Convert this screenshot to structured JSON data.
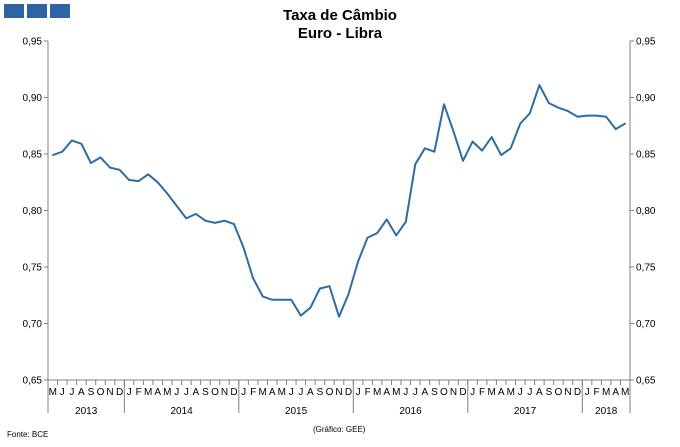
{
  "header": {
    "logo_name": "blue-blocks-logo"
  },
  "chart_data": {
    "type": "line",
    "title": "Taxa de Câmbio",
    "subtitle": "Euro - Libra",
    "ylim": [
      0.65,
      0.95
    ],
    "yticks": [
      "0,65",
      "0,70",
      "0,75",
      "0,80",
      "0,85",
      "0,90",
      "0,95"
    ],
    "grid": false,
    "line_color": "#2e6da4",
    "month_labels": [
      "M",
      "J",
      "J",
      "A",
      "S",
      "O",
      "N",
      "D",
      "J",
      "F",
      "M",
      "A",
      "M",
      "J",
      "J",
      "A",
      "S",
      "O",
      "N",
      "D",
      "J",
      "F",
      "M",
      "A",
      "M",
      "J",
      "J",
      "A",
      "S",
      "O",
      "N",
      "D",
      "J",
      "F",
      "M",
      "A",
      "M",
      "J",
      "J",
      "A",
      "S",
      "O",
      "N",
      "D",
      "J",
      "F",
      "M",
      "A",
      "M",
      "J",
      "J",
      "A",
      "S",
      "O",
      "N",
      "D",
      "J",
      "F",
      "M",
      "A",
      "M"
    ],
    "year_groups": [
      {
        "label": "2013",
        "months": 8
      },
      {
        "label": "2014",
        "months": 12
      },
      {
        "label": "2015",
        "months": 12
      },
      {
        "label": "2016",
        "months": 12
      },
      {
        "label": "2017",
        "months": 12
      },
      {
        "label": "2018",
        "months": 5
      }
    ],
    "series": [
      {
        "values": [
          0.849,
          0.852,
          0.862,
          0.859,
          0.842,
          0.847,
          0.838,
          0.836,
          0.827,
          0.826,
          0.832,
          0.825,
          0.815,
          0.804,
          0.793,
          0.797,
          0.791,
          0.789,
          0.791,
          0.788,
          0.767,
          0.74,
          0.724,
          0.721,
          0.721,
          0.721,
          0.707,
          0.714,
          0.731,
          0.733,
          0.706,
          0.726,
          0.755,
          0.776,
          0.78,
          0.792,
          0.778,
          0.79,
          0.841,
          0.855,
          0.852,
          0.894,
          0.87,
          0.844,
          0.861,
          0.853,
          0.865,
          0.849,
          0.855,
          0.877,
          0.886,
          0.911,
          0.895,
          0.891,
          0.888,
          0.883,
          0.884,
          0.884,
          0.883,
          0.872,
          0.877
        ]
      }
    ]
  },
  "footer": {
    "source": "Fonte: BCE",
    "credit": "(Gráfico: GEE)"
  }
}
